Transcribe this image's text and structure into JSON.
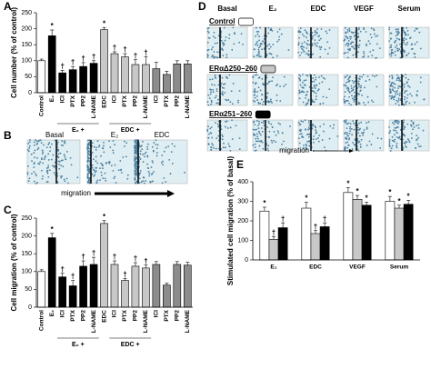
{
  "chart_data": [
    {
      "type": "bar",
      "panel": "A",
      "ylabel": "Cell number (% of control)",
      "categories": [
        "Control",
        "E₂",
        "ICI",
        "PTX",
        "PP2",
        "L-NAME",
        "EDC",
        "ICI",
        "PTX",
        "PP2",
        "L-NAME",
        "ICI",
        "PTX",
        "PP2",
        "L-NAME"
      ],
      "values": [
        100,
        178,
        62,
        72,
        82,
        92,
        197,
        122,
        112,
        88,
        88,
        75,
        57,
        90,
        90
      ],
      "errors": [
        5,
        18,
        8,
        10,
        12,
        8,
        7,
        6,
        10,
        15,
        25,
        20,
        10,
        10,
        10
      ],
      "colors": [
        "#ffffff",
        "#000000",
        "#000000",
        "#000000",
        "#000000",
        "#000000",
        "#c8c8c8",
        "#c8c8c8",
        "#c8c8c8",
        "#c8c8c8",
        "#c8c8c8",
        "#8c8c8c",
        "#8c8c8c",
        "#8c8c8c",
        "#8c8c8c"
      ],
      "marks": [
        null,
        "*",
        "†",
        "†",
        "†",
        "†",
        "*",
        "†",
        "†",
        "†",
        "†",
        null,
        null,
        null,
        null
      ],
      "groups": [
        "E₂ +",
        "EDC +"
      ],
      "ylim": [
        0,
        250
      ],
      "yticks": [
        0,
        50,
        100,
        150,
        200,
        250
      ]
    },
    {
      "type": "bar",
      "panel": "C",
      "ylabel": "Cell migration (% of control)",
      "categories": [
        "Control",
        "E₂",
        "ICI",
        "PTX",
        "PP2",
        "L-NAME",
        "EDC",
        "ICI",
        "PTX",
        "PP2",
        "L-NAME",
        "ICI",
        "PTX",
        "PP2",
        "L-NAME"
      ],
      "values": [
        100,
        195,
        85,
        60,
        115,
        120,
        235,
        120,
        75,
        115,
        110,
        120,
        62,
        120,
        118
      ],
      "errors": [
        5,
        12,
        10,
        15,
        15,
        20,
        8,
        10,
        6,
        10,
        8,
        8,
        5,
        8,
        8
      ],
      "colors": [
        "#ffffff",
        "#000000",
        "#000000",
        "#000000",
        "#000000",
        "#000000",
        "#c8c8c8",
        "#c8c8c8",
        "#c8c8c8",
        "#c8c8c8",
        "#c8c8c8",
        "#8c8c8c",
        "#8c8c8c",
        "#8c8c8c",
        "#8c8c8c"
      ],
      "marks": [
        null,
        "*",
        "†",
        "†",
        "†",
        "†",
        "*",
        "†",
        "†",
        "†",
        "†",
        null,
        null,
        null,
        null
      ],
      "groups": [
        "E₂ +",
        "EDC +"
      ],
      "ylim": [
        0,
        250
      ],
      "yticks": [
        0,
        50,
        100,
        150,
        200,
        250
      ]
    },
    {
      "type": "grouped-bar",
      "panel": "E",
      "ylabel": "Stimulated cell migration (% of basal)",
      "categories": [
        "E₂",
        "EDC",
        "VEGF",
        "Serum"
      ],
      "series": [
        {
          "name": "Control",
          "color": "#ffffff",
          "values": [
            250,
            265,
            345,
            300
          ],
          "errors": [
            20,
            30,
            25,
            25
          ],
          "marks": [
            "*",
            "*",
            "*",
            "*"
          ]
        },
        {
          "name": "ERαΔ250–260",
          "color": "#c8c8c8",
          "values": [
            105,
            135,
            310,
            265
          ],
          "errors": [
            15,
            15,
            20,
            15
          ],
          "marks": [
            "†",
            "†",
            "*",
            "*"
          ]
        },
        {
          "name": "ERα251–260",
          "color": "#000000",
          "values": [
            165,
            170,
            280,
            285
          ],
          "errors": [
            25,
            20,
            15,
            20
          ],
          "marks": [
            "†",
            "†",
            "*",
            "*"
          ]
        }
      ],
      "ylim": [
        0,
        400
      ],
      "yticks": [
        0,
        100,
        200,
        300,
        400
      ]
    }
  ],
  "panel_b": {
    "letter": "B",
    "labels": [
      "Basal",
      "E₂",
      "EDC"
    ],
    "migration": "migration"
  },
  "panel_d": {
    "letter": "D",
    "columns": [
      "Basal",
      "E₂",
      "EDC",
      "VEGF",
      "Serum"
    ],
    "migration": "migration"
  }
}
